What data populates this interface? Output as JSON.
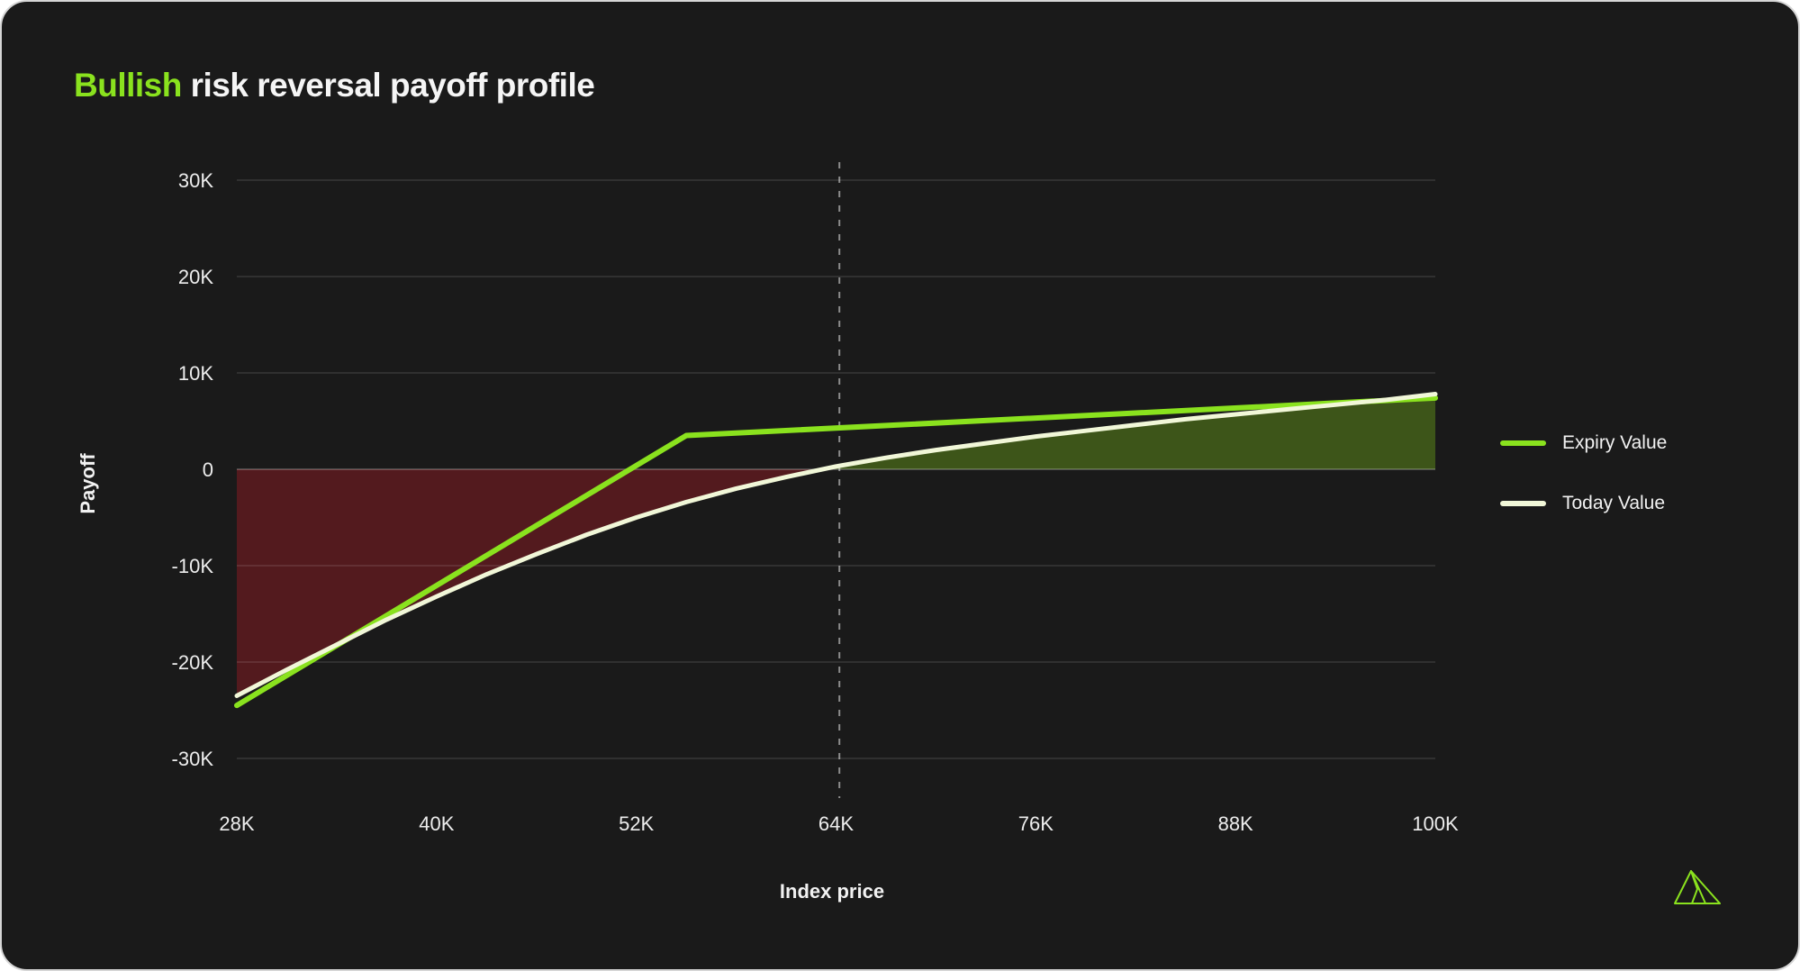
{
  "page": {
    "title_highlight": "Bullish",
    "title_rest": "risk reversal payoff profile"
  },
  "axes": {
    "x_label": "Index price",
    "y_label": "Payoff"
  },
  "legend": {
    "items": [
      {
        "label": "Expiry Value",
        "color": "#8ae21e"
      },
      {
        "label": "Today Value",
        "color": "#f1f7d8"
      }
    ]
  },
  "icons": {
    "brand_logo": "origami-bird-logo"
  },
  "colors": {
    "background": "#1a1a1a",
    "accent_green": "#8ae21e",
    "pale_green": "#f1f7d8",
    "loss_area": "#531a1e",
    "profit_area": "#3d5519"
  },
  "chart_data": {
    "type": "line",
    "title": "Bullish risk reversal payoff profile",
    "xlabel": "Index price",
    "ylabel": "Payoff",
    "xlim": [
      28,
      100
    ],
    "ylim": [
      -30,
      30
    ],
    "grid": "horizontal",
    "legend_position": "right",
    "x_ticks": [
      {
        "v": 28,
        "label": "28K"
      },
      {
        "v": 40,
        "label": "40K"
      },
      {
        "v": 52,
        "label": "52K"
      },
      {
        "v": 64,
        "label": "64K"
      },
      {
        "v": 76,
        "label": "76K"
      },
      {
        "v": 88,
        "label": "88K"
      },
      {
        "v": 100,
        "label": "100K"
      }
    ],
    "y_ticks": [
      {
        "v": 30,
        "label": "30K"
      },
      {
        "v": 20,
        "label": "20K"
      },
      {
        "v": 10,
        "label": "10K"
      },
      {
        "v": 0,
        "label": "0"
      },
      {
        "v": -10,
        "label": "-10K"
      },
      {
        "v": -20,
        "label": "-20K"
      },
      {
        "v": -30,
        "label": "-30K"
      }
    ],
    "marker_line": {
      "x": 64.2,
      "style": "dashed",
      "color": "rgba(255,255,255,0.5)"
    },
    "series": [
      {
        "name": "Expiry Value",
        "color": "#8ae21e",
        "width": 6,
        "points": [
          [
            28,
            -24.5
          ],
          [
            55,
            3.5
          ],
          [
            100,
            7.4
          ]
        ]
      },
      {
        "name": "Today Value",
        "color": "#f1f7d8",
        "width": 5,
        "points": [
          [
            28,
            -23.5
          ],
          [
            31,
            -20.8
          ],
          [
            34,
            -18.2
          ],
          [
            37,
            -15.6
          ],
          [
            40,
            -13.2
          ],
          [
            43,
            -10.9
          ],
          [
            46,
            -8.8
          ],
          [
            49,
            -6.8
          ],
          [
            52,
            -5.0
          ],
          [
            55,
            -3.4
          ],
          [
            58,
            -2.0
          ],
          [
            61,
            -0.8
          ],
          [
            64,
            0.3
          ],
          [
            67,
            1.2
          ],
          [
            70,
            2.0
          ],
          [
            73,
            2.7
          ],
          [
            76,
            3.4
          ],
          [
            79,
            4.0
          ],
          [
            82,
            4.6
          ],
          [
            85,
            5.2
          ],
          [
            88,
            5.7
          ],
          [
            91,
            6.2
          ],
          [
            94,
            6.7
          ],
          [
            97,
            7.2
          ],
          [
            100,
            7.8
          ]
        ]
      }
    ],
    "areas": {
      "source_series": "Today Value",
      "relative_to": 0,
      "negative_color": "#531a1e",
      "positive_color": "#3d5519"
    }
  }
}
